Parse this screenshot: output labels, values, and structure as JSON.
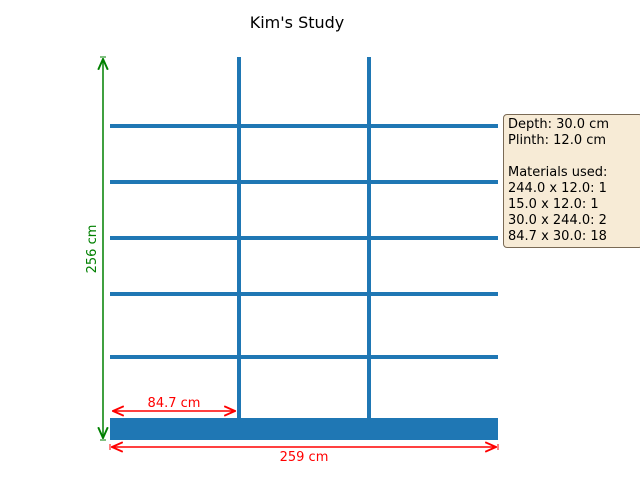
{
  "title": "Kim's Study",
  "colors": {
    "structure": "#1f77b4",
    "horizontal_dimension": "#ff0000",
    "vertical_dimension": "#008000",
    "info_box_fill": "#f7ebd6",
    "info_box_border": "#7a6a55"
  },
  "dimensions": {
    "total_width": "259 cm",
    "total_height": "256 cm",
    "shelf_width": "84.7 cm"
  },
  "info_box": {
    "depth": "Depth: 30.0 cm",
    "plinth": "Plinth: 12.0 cm",
    "materials_heading": "Materials used:",
    "materials": [
      "244.0 x 12.0: 1",
      "15.0 x 12.0: 1",
      "30.0 x 244.0: 2",
      "84.7 x 30.0: 18"
    ]
  },
  "structure": {
    "columns": 3,
    "dividers": 2,
    "shelves_per_column": 5,
    "has_plinth": true
  }
}
